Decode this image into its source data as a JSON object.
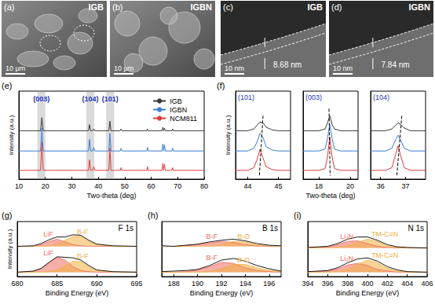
{
  "image_panels": [
    {
      "label": "(a)",
      "title": "IGB",
      "scale": "10 μm"
    },
    {
      "label": "(b)",
      "title": "IGBN",
      "scale": "10 μm"
    },
    {
      "label": "(c)",
      "title": "IGB",
      "scale": "10 nm",
      "annotation": "8.68 nm"
    },
    {
      "label": "(d)",
      "title": "IGBN",
      "scale": "10 nm",
      "annotation": "7.84 nm"
    }
  ],
  "chart_data": [
    {
      "type": "line",
      "label": "(e)",
      "x_label": "Two-theta (deg)",
      "y_label": "Intensity (a.u.)",
      "xlim": [
        10,
        80
      ],
      "xticks": [
        10,
        20,
        30,
        40,
        50,
        60,
        70,
        80
      ],
      "ylim": [
        0,
        100
      ],
      "tick_labels": "x",
      "legend": "upper right",
      "highlights": [
        {
          "label": "(003)",
          "range": [
            17,
            20
          ]
        },
        {
          "label": "(104)",
          "range": [
            35.5,
            38.5
          ]
        },
        {
          "label": "(101)",
          "range": [
            43,
            46
          ]
        }
      ],
      "x": [
        10,
        18.2,
        18.7,
        19.2,
        21,
        36.3,
        36.7,
        37.1,
        37.9,
        38.3,
        38.7,
        44.0,
        44.4,
        44.8,
        48.3,
        48.6,
        49.0,
        58.3,
        58.6,
        58.9,
        64.1,
        64.4,
        64.7,
        65.0,
        65.3,
        67.8,
        68.1,
        68.4,
        80
      ],
      "series": [
        {
          "name": "IGB",
          "color": "#3a3a3a",
          "values": [
            55,
            55,
            70,
            55,
            55,
            55,
            62,
            55,
            55,
            57,
            55,
            55,
            66,
            55,
            55,
            57,
            55,
            55,
            57,
            55,
            55,
            59,
            55,
            58,
            55,
            55,
            57,
            55,
            55
          ]
        },
        {
          "name": "IGBN",
          "color": "#3b7dd8",
          "values": [
            32,
            32,
            58,
            32,
            32,
            32,
            45,
            32,
            32,
            36,
            32,
            32,
            52,
            32,
            32,
            35,
            32,
            32,
            36,
            32,
            32,
            40,
            32,
            39,
            32,
            32,
            35,
            32,
            32
          ]
        },
        {
          "name": "NCM811",
          "color": "#e03c3c",
          "values": [
            10,
            10,
            42,
            10,
            10,
            10,
            22,
            10,
            10,
            14,
            10,
            10,
            35,
            10,
            10,
            13,
            10,
            10,
            14,
            10,
            10,
            18,
            10,
            17,
            10,
            10,
            13,
            10,
            10
          ]
        }
      ]
    },
    {
      "type": "line",
      "label": "(f)",
      "title": "(101)",
      "y_label": "Intensity (a.u.)",
      "xlim": [
        43.6,
        45.4
      ],
      "xticks": [
        44,
        45
      ],
      "ylim": [
        0,
        100
      ],
      "tick_labels": "x",
      "x": [
        43.6,
        44.0,
        44.2,
        44.3,
        44.4,
        44.5,
        44.6,
        44.8,
        45.0,
        45.4
      ],
      "series": [
        {
          "name": "IGB",
          "color": "#3a3a3a",
          "values": [
            55,
            55,
            57,
            61,
            65,
            64,
            59,
            56,
            55,
            55
          ]
        },
        {
          "name": "IGBN",
          "color": "#3b7dd8",
          "values": [
            32,
            32,
            35,
            42,
            52,
            47,
            37,
            33,
            32,
            32
          ]
        },
        {
          "name": "NCM811",
          "color": "#e03c3c",
          "values": [
            10,
            10,
            13,
            22,
            34,
            24,
            14,
            11,
            10,
            10
          ]
        }
      ],
      "guide": {
        "x": [
          44.5,
          44.38
        ],
        "values": [
          72,
          4
        ],
        "color": "#000000",
        "line_style": "dashed"
      }
    },
    {
      "type": "line",
      "title": "(003)",
      "x_label": "Two-theta (deg)",
      "xlim": [
        17,
        20.5
      ],
      "xticks": [
        18,
        20
      ],
      "ylim": [
        0,
        100
      ],
      "tick_labels": "x",
      "x": [
        17,
        18.0,
        18.4,
        18.55,
        18.7,
        18.85,
        19.0,
        19.4,
        20.5
      ],
      "series": [
        {
          "name": "IGB",
          "color": "#3a3a3a",
          "values": [
            55,
            55,
            57,
            64,
            72,
            62,
            57,
            55,
            55
          ]
        },
        {
          "name": "IGBN",
          "color": "#3b7dd8",
          "values": [
            32,
            32,
            34,
            46,
            62,
            46,
            34,
            32,
            32
          ]
        },
        {
          "name": "NCM811",
          "color": "#e03c3c",
          "values": [
            10,
            10,
            12,
            25,
            48,
            25,
            12,
            10,
            10
          ]
        }
      ],
      "guide": {
        "x": [
          18.65,
          18.72
        ],
        "values": [
          80,
          4
        ],
        "color": "#000000",
        "line_style": "dashed"
      }
    },
    {
      "type": "line",
      "title": "(104)",
      "xlim": [
        35.6,
        37.8
      ],
      "xticks": [
        36,
        37
      ],
      "ylim": [
        0,
        100
      ],
      "tick_labels": "x",
      "x": [
        35.6,
        36.2,
        36.45,
        36.6,
        36.7,
        36.8,
        36.95,
        37.2,
        37.8
      ],
      "series": [
        {
          "name": "IGB",
          "color": "#3a3a3a",
          "values": [
            55,
            55,
            57,
            61,
            64,
            62,
            58,
            55,
            55
          ]
        },
        {
          "name": "IGBN",
          "color": "#3b7dd8",
          "values": [
            32,
            32,
            35,
            45,
            50,
            44,
            35,
            32,
            32
          ]
        },
        {
          "name": "NCM811",
          "color": "#e03c3c",
          "values": [
            10,
            10,
            13,
            28,
            38,
            27,
            13,
            10,
            10
          ]
        }
      ],
      "guide": {
        "x": [
          36.85,
          36.65
        ],
        "values": [
          72,
          4
        ],
        "color": "#000000",
        "line_style": "dashed"
      }
    },
    {
      "type": "line",
      "label": "(g)",
      "title": "F 1s",
      "x_label": "Binding Energy (eV)",
      "y_label": "Intensity (a.u.)",
      "xlim": [
        680,
        695
      ],
      "xticks": [
        680,
        685,
        690,
        695
      ],
      "ylim": [
        0,
        100
      ],
      "tick_labels": "x",
      "spectra": [
        {
          "baseline": 55,
          "color": "#000000",
          "x": [
            680,
            682,
            683,
            684,
            685,
            686,
            687,
            688,
            689,
            690,
            692,
            695
          ],
          "values": [
            55,
            56,
            60,
            67,
            72,
            72,
            76,
            75,
            66,
            59,
            56,
            55
          ],
          "components": [
            {
              "name": "LiF",
              "color": "#ef6b60",
              "values": [
                55,
                55,
                58,
                64,
                68,
                63,
                58,
                56,
                55,
                55,
                55,
                55
              ]
            },
            {
              "name": "B-F",
              "color": "#f0b040",
              "values": [
                55,
                55,
                55,
                56,
                59,
                66,
                73,
                73,
                64,
                58,
                55,
                55
              ]
            }
          ]
        },
        {
          "baseline": 8,
          "color": "#000000",
          "x": [
            680,
            682,
            683,
            684,
            685,
            686,
            687,
            688,
            689,
            690,
            692,
            695
          ],
          "values": [
            8,
            10,
            15,
            26,
            36,
            35,
            34,
            30,
            20,
            12,
            9,
            8
          ],
          "components": [
            {
              "name": "LiF",
              "color": "#ef6b60",
              "values": [
                8,
                9,
                14,
                25,
                35,
                30,
                18,
                11,
                9,
                8,
                8,
                8
              ]
            },
            {
              "name": "B-F",
              "color": "#f0b040",
              "values": [
                8,
                8,
                8,
                9,
                12,
                20,
                28,
                27,
                18,
                11,
                8,
                8
              ]
            }
          ]
        }
      ]
    },
    {
      "type": "line",
      "label": "(h)",
      "title": "B 1s",
      "x_label": "Binding Energy (eV)",
      "xlim": [
        187,
        197
      ],
      "xticks": [
        188,
        190,
        192,
        194,
        196
      ],
      "ylim": [
        0,
        100
      ],
      "tick_labels": "x",
      "spectra": [
        {
          "baseline": 55,
          "color": "#000000",
          "x": [
            187,
            188,
            189,
            190,
            191,
            192,
            193,
            194,
            195,
            196,
            197
          ],
          "values": [
            56,
            55,
            57,
            59,
            63,
            66,
            68,
            65,
            60,
            57,
            56
          ],
          "components": [
            {
              "name": "B-F",
              "color": "#ef6b60",
              "values": [
                55,
                55,
                56,
                58,
                61,
                64,
                62,
                58,
                56,
                55,
                55
              ]
            },
            {
              "name": "B-O",
              "color": "#f0b040",
              "values": [
                55,
                55,
                55,
                55,
                56,
                58,
                64,
                63,
                58,
                56,
                55
              ]
            }
          ]
        },
        {
          "baseline": 8,
          "color": "#000000",
          "x": [
            187,
            188,
            189,
            190,
            191,
            192,
            193,
            194,
            195,
            196,
            197
          ],
          "values": [
            9,
            10,
            11,
            13,
            20,
            30,
            33,
            28,
            20,
            14,
            10
          ],
          "components": [
            {
              "name": "B-F",
              "color": "#ef6b60",
              "values": [
                8,
                8,
                9,
                12,
                18,
                26,
                24,
                16,
                11,
                9,
                8
              ]
            },
            {
              "name": "B-O",
              "color": "#f0b040",
              "values": [
                8,
                8,
                8,
                8,
                9,
                14,
                22,
                22,
                16,
                11,
                9
              ]
            }
          ]
        }
      ]
    },
    {
      "type": "line",
      "label": "(i)",
      "title": "N 1s",
      "x_label": "Binding Energy (eV)",
      "xlim": [
        394,
        406
      ],
      "xticks": [
        394,
        396,
        398,
        400,
        402,
        404,
        406
      ],
      "ylim": [
        0,
        100
      ],
      "tick_labels": "x",
      "spectra": [
        {
          "baseline": 52,
          "color": "#000000",
          "x": [
            394,
            396,
            397,
            398,
            399,
            400,
            401,
            402,
            403,
            404,
            406
          ],
          "values": [
            53,
            55,
            60,
            68,
            72,
            72,
            66,
            58,
            54,
            53,
            52
          ],
          "components": [
            {
              "name": "Li₃N",
              "color": "#ef6b60",
              "values": [
                52,
                54,
                58,
                64,
                65,
                60,
                55,
                53,
                52,
                52,
                52
              ]
            },
            {
              "name": "TM-C≡N",
              "color": "#f0b040",
              "values": [
                52,
                52,
                53,
                56,
                62,
                68,
                64,
                56,
                53,
                52,
                52
              ]
            }
          ]
        },
        {
          "baseline": 8,
          "color": "#000000",
          "x": [
            394,
            396,
            397,
            398,
            399,
            400,
            401,
            402,
            403,
            404,
            406
          ],
          "values": [
            9,
            11,
            16,
            25,
            32,
            34,
            28,
            18,
            12,
            9,
            8
          ],
          "components": [
            {
              "name": "Li₃N",
              "color": "#ef6b60",
              "values": [
                8,
                10,
                14,
                21,
                24,
                20,
                13,
                10,
                8,
                8,
                8
              ]
            },
            {
              "name": "TM-C≡N",
              "color": "#f0b040",
              "values": [
                8,
                8,
                9,
                13,
                22,
                30,
                25,
                15,
                10,
                8,
                8
              ]
            }
          ]
        }
      ]
    }
  ]
}
